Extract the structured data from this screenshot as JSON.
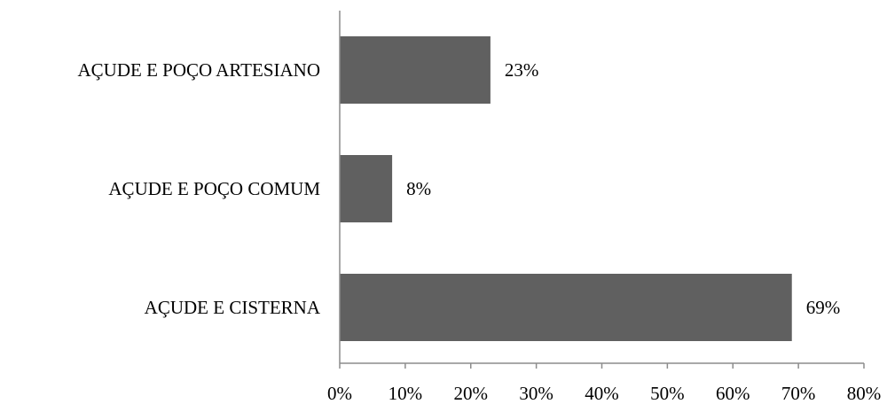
{
  "chart_data": {
    "type": "bar",
    "orientation": "horizontal",
    "categories": [
      "AÇUDE E POÇO ARTESIANO",
      "AÇUDE E POÇO COMUM",
      "AÇUDE E CISTERNA"
    ],
    "values": [
      23,
      8,
      69
    ],
    "value_labels": [
      "23%",
      "8%",
      "69%"
    ],
    "xlim": [
      0,
      80
    ],
    "x_ticks": [
      0,
      10,
      20,
      30,
      40,
      50,
      60,
      70,
      80
    ],
    "x_tick_labels": [
      "0%",
      "10%",
      "20%",
      "30%",
      "40%",
      "50%",
      "60%",
      "70%",
      "80%"
    ],
    "title": "",
    "xlabel": "",
    "ylabel": "",
    "grid": false,
    "legend": "none",
    "bar_color": "#606060",
    "axis_color": "#8c8c8c"
  }
}
